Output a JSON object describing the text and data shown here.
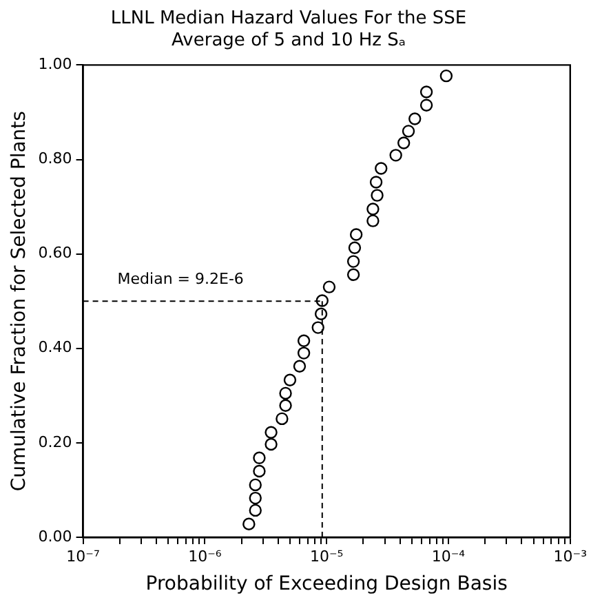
{
  "chart_data": {
    "type": "scatter",
    "title": "LLNL Median Hazard Values For the SSE",
    "subtitle": "Average of 5 and 10 Hz Sₐ",
    "xlabel": "Probability of Exceeding Design Basis",
    "ylabel": "Cumulative Fraction for Selected Plants",
    "log": "x",
    "grid": false,
    "legend": false,
    "marker": "circle",
    "xlim": [
      1e-07,
      0.001
    ],
    "xticks": [
      {
        "value": 1e-07,
        "label": "10⁻⁷"
      },
      {
        "value": 2e-07,
        "label": null
      },
      {
        "value": 3e-07,
        "label": null
      },
      {
        "value": 4e-07,
        "label": null
      },
      {
        "value": 5e-07,
        "label": null
      },
      {
        "value": 6e-07,
        "label": null
      },
      {
        "value": 7e-07,
        "label": null
      },
      {
        "value": 8e-07,
        "label": null
      },
      {
        "value": 9e-07,
        "label": null
      },
      {
        "value": 1e-06,
        "label": "10⁻⁶"
      },
      {
        "value": 2e-06,
        "label": null
      },
      {
        "value": 3e-06,
        "label": null
      },
      {
        "value": 4e-06,
        "label": null
      },
      {
        "value": 5e-06,
        "label": null
      },
      {
        "value": 6e-06,
        "label": null
      },
      {
        "value": 7e-06,
        "label": null
      },
      {
        "value": 8e-06,
        "label": null
      },
      {
        "value": 9e-06,
        "label": null
      },
      {
        "value": 1e-05,
        "label": "10⁻⁵"
      },
      {
        "value": 2e-05,
        "label": null
      },
      {
        "value": 3e-05,
        "label": null
      },
      {
        "value": 4e-05,
        "label": null
      },
      {
        "value": 5e-05,
        "label": null
      },
      {
        "value": 6e-05,
        "label": null
      },
      {
        "value": 7e-05,
        "label": null
      },
      {
        "value": 8e-05,
        "label": null
      },
      {
        "value": 9e-05,
        "label": null
      },
      {
        "value": 0.0001,
        "label": "10⁻⁴"
      },
      {
        "value": 0.0002,
        "label": null
      },
      {
        "value": 0.0003,
        "label": null
      },
      {
        "value": 0.0004,
        "label": null
      },
      {
        "value": 0.0005,
        "label": null
      },
      {
        "value": 0.0006,
        "label": null
      },
      {
        "value": 0.0007,
        "label": null
      },
      {
        "value": 0.0008,
        "label": null
      },
      {
        "value": 0.0009,
        "label": null
      },
      {
        "value": 0.001,
        "label": "10⁻³"
      }
    ],
    "ylim": [
      0,
      1
    ],
    "yticks": [
      {
        "value": 0,
        "label": "0.00"
      },
      {
        "value": 0.2,
        "label": "0.20"
      },
      {
        "value": 0.4,
        "label": "0.40"
      },
      {
        "value": 0.6,
        "label": "0.60"
      },
      {
        "value": 0.8,
        "label": "0.80"
      },
      {
        "value": 1,
        "label": "1.00"
      }
    ],
    "ref_lines": [
      {
        "axis": "y",
        "value": 0.5,
        "line_style": "dashed",
        "color": "#000000"
      },
      {
        "axis": "x",
        "value": 9.2e-06,
        "label": "Median = 9.2E-6",
        "line_style": "dashed",
        "color": "#000000"
      }
    ],
    "series": [
      {
        "color": "#000000",
        "x": [
          2.3e-06,
          2.6e-06,
          2.6e-06,
          2.6e-06,
          2.8e-06,
          2.8e-06,
          3.5e-06,
          3.5e-06,
          4.3e-06,
          4.6e-06,
          4.6e-06,
          5e-06,
          6e-06,
          6.5e-06,
          6.5e-06,
          8.5e-06,
          9e-06,
          9.2e-06,
          1.05e-05,
          1.66e-05,
          1.66e-05,
          1.7e-05,
          1.75e-05,
          2.4e-05,
          2.4e-05,
          2.6e-05,
          2.55e-05,
          2.8e-05,
          3.7e-05,
          4.3e-05,
          4.7e-05,
          5.3e-05,
          6.6e-05,
          6.6e-05,
          9.6e-05
        ],
        "values": [
          0.028,
          0.057,
          0.083,
          0.111,
          0.14,
          0.168,
          0.197,
          0.222,
          0.251,
          0.279,
          0.305,
          0.333,
          0.362,
          0.39,
          0.416,
          0.444,
          0.473,
          0.501,
          0.53,
          0.556,
          0.584,
          0.613,
          0.641,
          0.67,
          0.695,
          0.724,
          0.752,
          0.781,
          0.809,
          0.835,
          0.86,
          0.886,
          0.915,
          0.943,
          0.977
        ]
      }
    ]
  }
}
